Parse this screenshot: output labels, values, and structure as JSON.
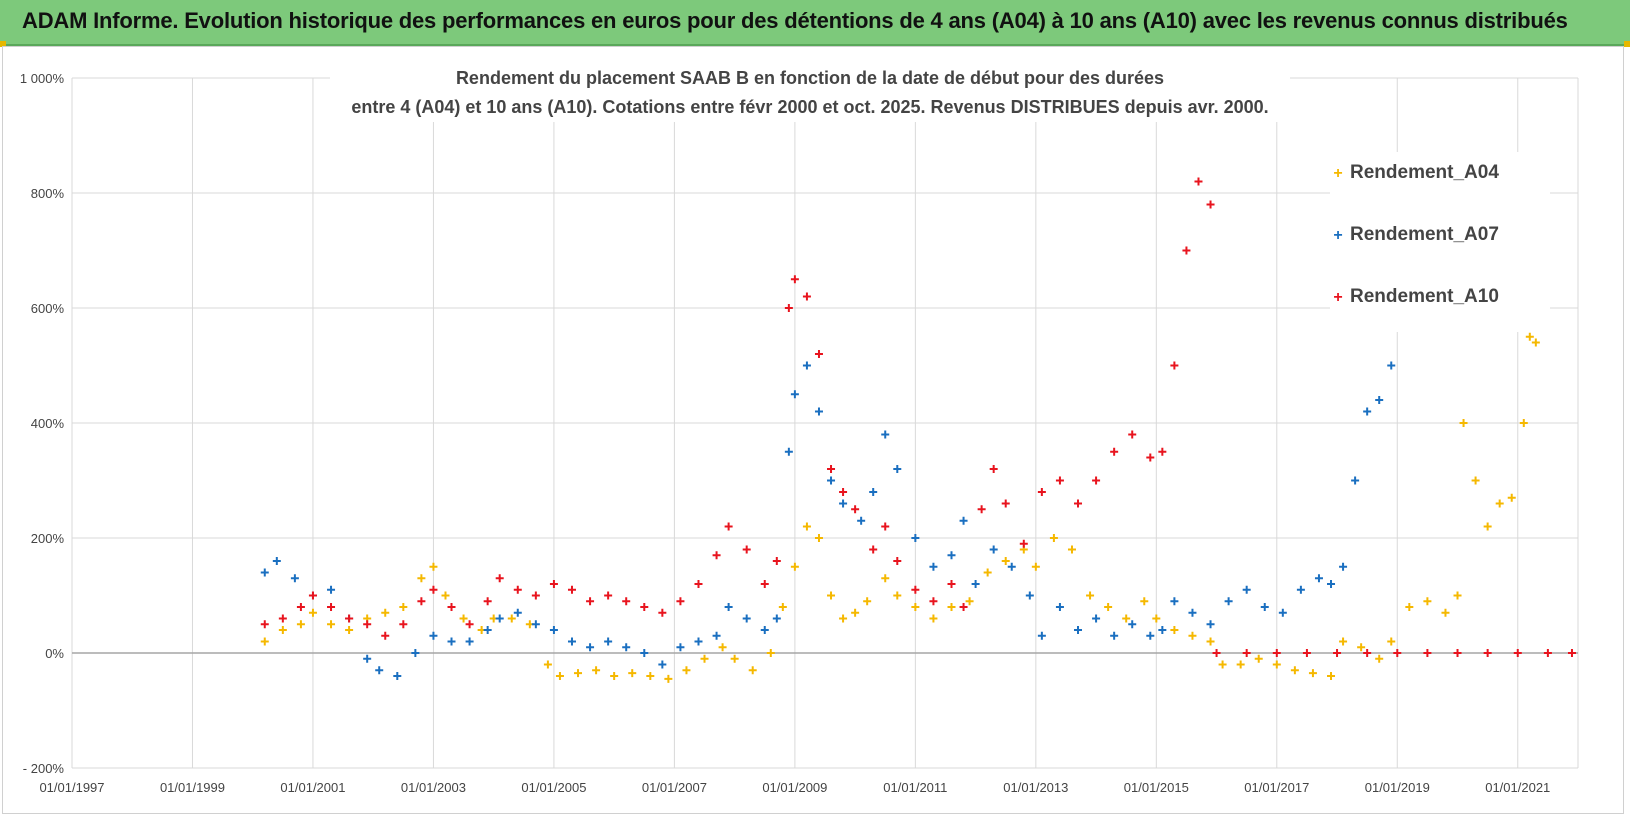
{
  "header": {
    "title": "ADAM Informe. Evolution historique des performances en euros pour des détentions de 4 ans (A04) à 10 ans (A10) avec les revenus connus distribués"
  },
  "colors": {
    "header_bg": "#7dc97b",
    "A04": "#f5b800",
    "A07": "#1a6fc0",
    "A10": "#e8141e",
    "grid": "#d9d9d9",
    "zero_line": "#a6a6a6"
  },
  "chart_data": {
    "type": "scatter",
    "title_lines": [
      "Rendement du placement SAAB B en fonction de la date de début pour des durées",
      "entre 4 (A04) et 10 ans (A10). Cotations entre févr 2000 et oct. 2025. Revenus DISTRIBUES depuis avr. 2000."
    ],
    "xlabel": "",
    "ylabel": "",
    "x_ticks": [
      "01/01/1997",
      "01/01/1999",
      "01/01/2001",
      "01/01/2003",
      "01/01/2005",
      "01/01/2007",
      "01/01/2009",
      "01/01/2011",
      "01/01/2013",
      "01/01/2015",
      "01/01/2017",
      "01/01/2019",
      "01/01/2021"
    ],
    "xlim": [
      1997.0,
      2022.0
    ],
    "y_ticks": [
      "- 200%",
      "0%",
      "200%",
      "400%",
      "600%",
      "800%",
      "1 000%"
    ],
    "y_tick_values": [
      -200,
      0,
      200,
      400,
      600,
      800,
      1000
    ],
    "ylim": [
      -200,
      1000
    ],
    "grid": true,
    "legend_position": "top-right",
    "marker": "+",
    "series": [
      {
        "name": "Rendement_A04",
        "color": "#f5b800",
        "points": [
          [
            2000.2,
            20
          ],
          [
            2000.5,
            40
          ],
          [
            2000.8,
            50
          ],
          [
            2001.0,
            70
          ],
          [
            2001.3,
            50
          ],
          [
            2001.6,
            40
          ],
          [
            2001.9,
            60
          ],
          [
            2002.2,
            70
          ],
          [
            2002.5,
            80
          ],
          [
            2002.8,
            130
          ],
          [
            2003.0,
            150
          ],
          [
            2003.2,
            100
          ],
          [
            2003.5,
            60
          ],
          [
            2003.8,
            40
          ],
          [
            2004.0,
            60
          ],
          [
            2004.3,
            60
          ],
          [
            2004.6,
            50
          ],
          [
            2004.9,
            -20
          ],
          [
            2005.1,
            -40
          ],
          [
            2005.4,
            -35
          ],
          [
            2005.7,
            -30
          ],
          [
            2006.0,
            -40
          ],
          [
            2006.3,
            -35
          ],
          [
            2006.6,
            -40
          ],
          [
            2006.9,
            -45
          ],
          [
            2007.2,
            -30
          ],
          [
            2007.5,
            -10
          ],
          [
            2007.8,
            10
          ],
          [
            2008.0,
            -10
          ],
          [
            2008.3,
            -30
          ],
          [
            2008.6,
            0
          ],
          [
            2008.8,
            80
          ],
          [
            2009.0,
            150
          ],
          [
            2009.2,
            220
          ],
          [
            2009.4,
            200
          ],
          [
            2009.6,
            100
          ],
          [
            2009.8,
            60
          ],
          [
            2010.0,
            70
          ],
          [
            2010.2,
            90
          ],
          [
            2010.5,
            130
          ],
          [
            2010.7,
            100
          ],
          [
            2011.0,
            80
          ],
          [
            2011.3,
            60
          ],
          [
            2011.6,
            80
          ],
          [
            2011.9,
            90
          ],
          [
            2012.2,
            140
          ],
          [
            2012.5,
            160
          ],
          [
            2012.8,
            180
          ],
          [
            2013.0,
            150
          ],
          [
            2013.3,
            200
          ],
          [
            2013.6,
            180
          ],
          [
            2013.9,
            100
          ],
          [
            2014.2,
            80
          ],
          [
            2014.5,
            60
          ],
          [
            2014.8,
            90
          ],
          [
            2015.0,
            60
          ],
          [
            2015.3,
            40
          ],
          [
            2015.6,
            30
          ],
          [
            2015.9,
            20
          ],
          [
            2016.1,
            -20
          ],
          [
            2016.4,
            -20
          ],
          [
            2016.7,
            -10
          ],
          [
            2017.0,
            -20
          ],
          [
            2017.3,
            -30
          ],
          [
            2017.6,
            -35
          ],
          [
            2017.9,
            -40
          ],
          [
            2018.1,
            20
          ],
          [
            2018.4,
            10
          ],
          [
            2018.7,
            -10
          ],
          [
            2018.9,
            20
          ],
          [
            2019.2,
            80
          ],
          [
            2019.5,
            90
          ],
          [
            2019.8,
            70
          ],
          [
            2020.0,
            100
          ],
          [
            2020.1,
            400
          ],
          [
            2020.3,
            300
          ],
          [
            2020.5,
            220
          ],
          [
            2020.7,
            260
          ],
          [
            2020.9,
            270
          ],
          [
            2021.1,
            400
          ],
          [
            2021.2,
            550
          ],
          [
            2021.3,
            540
          ]
        ]
      },
      {
        "name": "Rendement_A07",
        "color": "#1a6fc0",
        "points": [
          [
            2000.2,
            140
          ],
          [
            2000.4,
            160
          ],
          [
            2000.7,
            130
          ],
          [
            2001.0,
            100
          ],
          [
            2001.3,
            110
          ],
          [
            2001.6,
            60
          ],
          [
            2001.9,
            -10
          ],
          [
            2002.1,
            -30
          ],
          [
            2002.4,
            -40
          ],
          [
            2002.7,
            0
          ],
          [
            2003.0,
            30
          ],
          [
            2003.3,
            20
          ],
          [
            2003.6,
            20
          ],
          [
            2003.9,
            40
          ],
          [
            2004.1,
            60
          ],
          [
            2004.4,
            70
          ],
          [
            2004.7,
            50
          ],
          [
            2005.0,
            40
          ],
          [
            2005.3,
            20
          ],
          [
            2005.6,
            10
          ],
          [
            2005.9,
            20
          ],
          [
            2006.2,
            10
          ],
          [
            2006.5,
            0
          ],
          [
            2006.8,
            -20
          ],
          [
            2007.1,
            10
          ],
          [
            2007.4,
            20
          ],
          [
            2007.7,
            30
          ],
          [
            2007.9,
            80
          ],
          [
            2008.2,
            60
          ],
          [
            2008.5,
            40
          ],
          [
            2008.7,
            60
          ],
          [
            2008.9,
            350
          ],
          [
            2009.0,
            450
          ],
          [
            2009.2,
            500
          ],
          [
            2009.4,
            420
          ],
          [
            2009.6,
            300
          ],
          [
            2009.8,
            260
          ],
          [
            2010.1,
            230
          ],
          [
            2010.3,
            280
          ],
          [
            2010.5,
            380
          ],
          [
            2010.7,
            320
          ],
          [
            2011.0,
            200
          ],
          [
            2011.3,
            150
          ],
          [
            2011.6,
            170
          ],
          [
            2011.8,
            230
          ],
          [
            2012.0,
            120
          ],
          [
            2012.3,
            180
          ],
          [
            2012.6,
            150
          ],
          [
            2012.9,
            100
          ],
          [
            2013.1,
            30
          ],
          [
            2013.4,
            80
          ],
          [
            2013.7,
            40
          ],
          [
            2014.0,
            60
          ],
          [
            2014.3,
            30
          ],
          [
            2014.6,
            50
          ],
          [
            2014.9,
            30
          ],
          [
            2015.1,
            40
          ],
          [
            2015.3,
            90
          ],
          [
            2015.6,
            70
          ],
          [
            2015.9,
            50
          ],
          [
            2016.2,
            90
          ],
          [
            2016.5,
            110
          ],
          [
            2016.8,
            80
          ],
          [
            2017.1,
            70
          ],
          [
            2017.4,
            110
          ],
          [
            2017.7,
            130
          ],
          [
            2017.9,
            120
          ],
          [
            2018.1,
            150
          ],
          [
            2018.3,
            300
          ],
          [
            2018.5,
            420
          ],
          [
            2018.7,
            440
          ],
          [
            2018.9,
            500
          ]
        ]
      },
      {
        "name": "Rendement_A10",
        "color": "#e8141e",
        "points": [
          [
            2000.2,
            50
          ],
          [
            2000.5,
            60
          ],
          [
            2000.8,
            80
          ],
          [
            2001.0,
            100
          ],
          [
            2001.3,
            80
          ],
          [
            2001.6,
            60
          ],
          [
            2001.9,
            50
          ],
          [
            2002.2,
            30
          ],
          [
            2002.5,
            50
          ],
          [
            2002.8,
            90
          ],
          [
            2003.0,
            110
          ],
          [
            2003.3,
            80
          ],
          [
            2003.6,
            50
          ],
          [
            2003.9,
            90
          ],
          [
            2004.1,
            130
          ],
          [
            2004.4,
            110
          ],
          [
            2004.7,
            100
          ],
          [
            2005.0,
            120
          ],
          [
            2005.3,
            110
          ],
          [
            2005.6,
            90
          ],
          [
            2005.9,
            100
          ],
          [
            2006.2,
            90
          ],
          [
            2006.5,
            80
          ],
          [
            2006.8,
            70
          ],
          [
            2007.1,
            90
          ],
          [
            2007.4,
            120
          ],
          [
            2007.7,
            170
          ],
          [
            2007.9,
            220
          ],
          [
            2008.2,
            180
          ],
          [
            2008.5,
            120
          ],
          [
            2008.7,
            160
          ],
          [
            2008.9,
            600
          ],
          [
            2009.0,
            650
          ],
          [
            2009.2,
            620
          ],
          [
            2009.4,
            520
          ],
          [
            2009.6,
            320
          ],
          [
            2009.8,
            280
          ],
          [
            2010.0,
            250
          ],
          [
            2010.3,
            180
          ],
          [
            2010.5,
            220
          ],
          [
            2010.7,
            160
          ],
          [
            2011.0,
            110
          ],
          [
            2011.3,
            90
          ],
          [
            2011.6,
            120
          ],
          [
            2011.8,
            80
          ],
          [
            2012.1,
            250
          ],
          [
            2012.3,
            320
          ],
          [
            2012.5,
            260
          ],
          [
            2012.8,
            190
          ],
          [
            2013.1,
            280
          ],
          [
            2013.4,
            300
          ],
          [
            2013.7,
            260
          ],
          [
            2014.0,
            300
          ],
          [
            2014.3,
            350
          ],
          [
            2014.6,
            380
          ],
          [
            2014.9,
            340
          ],
          [
            2015.1,
            350
          ],
          [
            2015.3,
            500
          ],
          [
            2015.5,
            700
          ],
          [
            2015.7,
            820
          ],
          [
            2015.9,
            780
          ],
          [
            2016.0,
            0
          ],
          [
            2016.5,
            0
          ],
          [
            2017.0,
            0
          ],
          [
            2017.5,
            0
          ],
          [
            2018.0,
            0
          ],
          [
            2018.5,
            0
          ],
          [
            2019.0,
            0
          ],
          [
            2019.5,
            0
          ],
          [
            2020.0,
            0
          ],
          [
            2020.5,
            0
          ],
          [
            2021.0,
            0
          ],
          [
            2021.5,
            0
          ],
          [
            2021.9,
            0
          ]
        ]
      }
    ]
  }
}
